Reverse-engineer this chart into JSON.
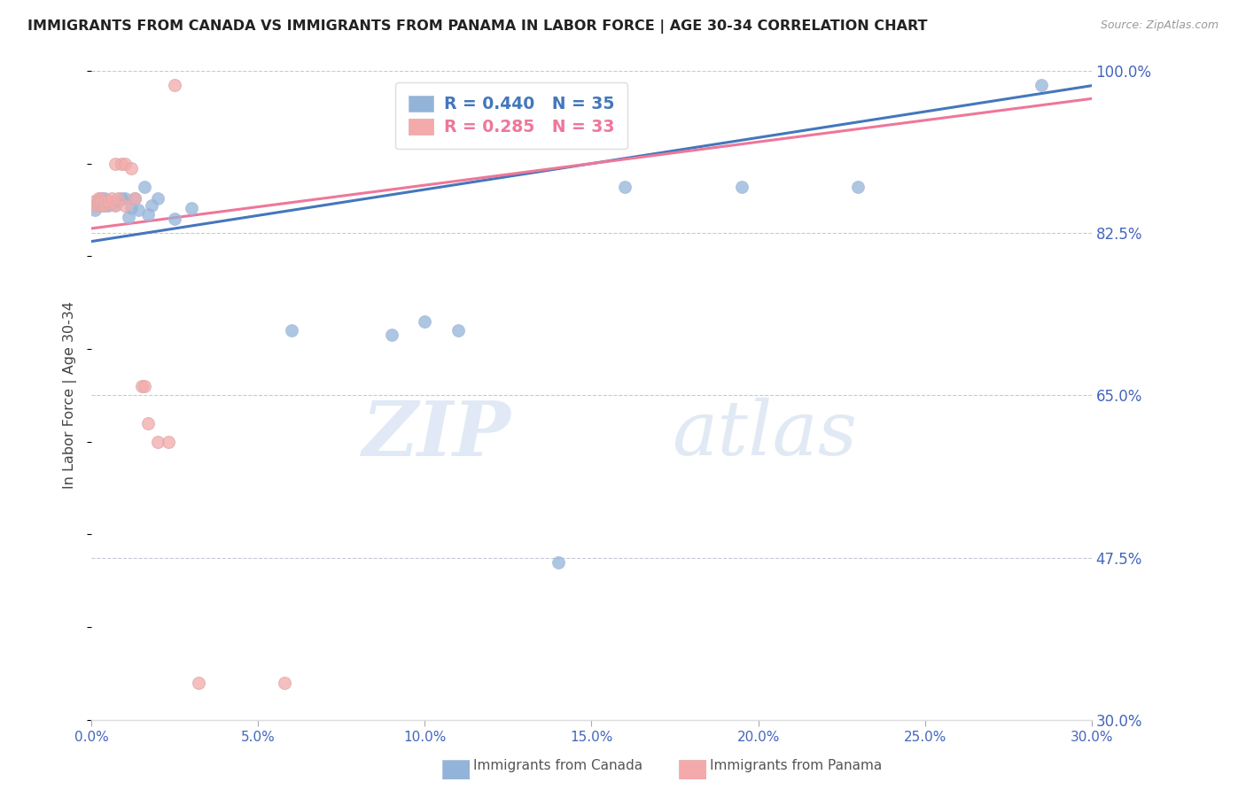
{
  "title": "IMMIGRANTS FROM CANADA VS IMMIGRANTS FROM PANAMA IN LABOR FORCE | AGE 30-34 CORRELATION CHART",
  "source": "Source: ZipAtlas.com",
  "ylabel": "In Labor Force | Age 30-34",
  "canada_R": 0.44,
  "canada_N": 35,
  "panama_R": 0.285,
  "panama_N": 33,
  "xlim": [
    0.0,
    0.3
  ],
  "ylim": [
    0.3,
    1.0
  ],
  "xticks": [
    0.0,
    0.05,
    0.1,
    0.15,
    0.2,
    0.25,
    0.3
  ],
  "yticks": [
    0.3,
    0.475,
    0.65,
    0.825,
    1.0
  ],
  "ytick_labels": [
    "30.0%",
    "47.5%",
    "65.0%",
    "82.5%",
    "100.0%"
  ],
  "xtick_labels": [
    "0.0%",
    "5.0%",
    "10.0%",
    "15.0%",
    "20.0%",
    "25.0%",
    "30.0%"
  ],
  "canada_color": "#92B4D8",
  "panama_color": "#F4AAAA",
  "canada_line_color": "#4477BB",
  "panama_line_color": "#EE7799",
  "background_color": "#FFFFFF",
  "grid_color": "#BBBBCC",
  "axis_label_color": "#4466BB",
  "title_color": "#222222",
  "canada_x": [
    0.001,
    0.002,
    0.002,
    0.003,
    0.003,
    0.003,
    0.004,
    0.004,
    0.004,
    0.005,
    0.005,
    0.006,
    0.007,
    0.008,
    0.009,
    0.01,
    0.011,
    0.012,
    0.013,
    0.014,
    0.016,
    0.017,
    0.018,
    0.02,
    0.025,
    0.03,
    0.06,
    0.09,
    0.1,
    0.11,
    0.14,
    0.16,
    0.195,
    0.23,
    0.285
  ],
  "canada_y": [
    0.85,
    0.855,
    0.86,
    0.857,
    0.862,
    0.855,
    0.858,
    0.855,
    0.862,
    0.86,
    0.855,
    0.858,
    0.856,
    0.86,
    0.862,
    0.862,
    0.842,
    0.852,
    0.862,
    0.85,
    0.875,
    0.845,
    0.855,
    0.862,
    0.84,
    0.852,
    0.72,
    0.715,
    0.73,
    0.72,
    0.47,
    0.875,
    0.875,
    0.875,
    0.985
  ],
  "panama_x": [
    0.001,
    0.001,
    0.002,
    0.002,
    0.002,
    0.002,
    0.003,
    0.003,
    0.003,
    0.003,
    0.003,
    0.003,
    0.004,
    0.004,
    0.005,
    0.005,
    0.006,
    0.007,
    0.007,
    0.008,
    0.009,
    0.01,
    0.01,
    0.012,
    0.013,
    0.015,
    0.016,
    0.017,
    0.02,
    0.023,
    0.025,
    0.032,
    0.058
  ],
  "panama_y": [
    0.86,
    0.855,
    0.862,
    0.858,
    0.86,
    0.855,
    0.86,
    0.858,
    0.856,
    0.862,
    0.858,
    0.86,
    0.855,
    0.86,
    0.858,
    0.86,
    0.862,
    0.9,
    0.855,
    0.862,
    0.9,
    0.9,
    0.855,
    0.895,
    0.862,
    0.66,
    0.66,
    0.62,
    0.6,
    0.6,
    0.985,
    0.34,
    0.34
  ],
  "canada_trendline": [
    0.816,
    0.984
  ],
  "panama_trendline": [
    0.83,
    0.97
  ],
  "watermark_zip": "ZIP",
  "watermark_atlas": "atlas"
}
